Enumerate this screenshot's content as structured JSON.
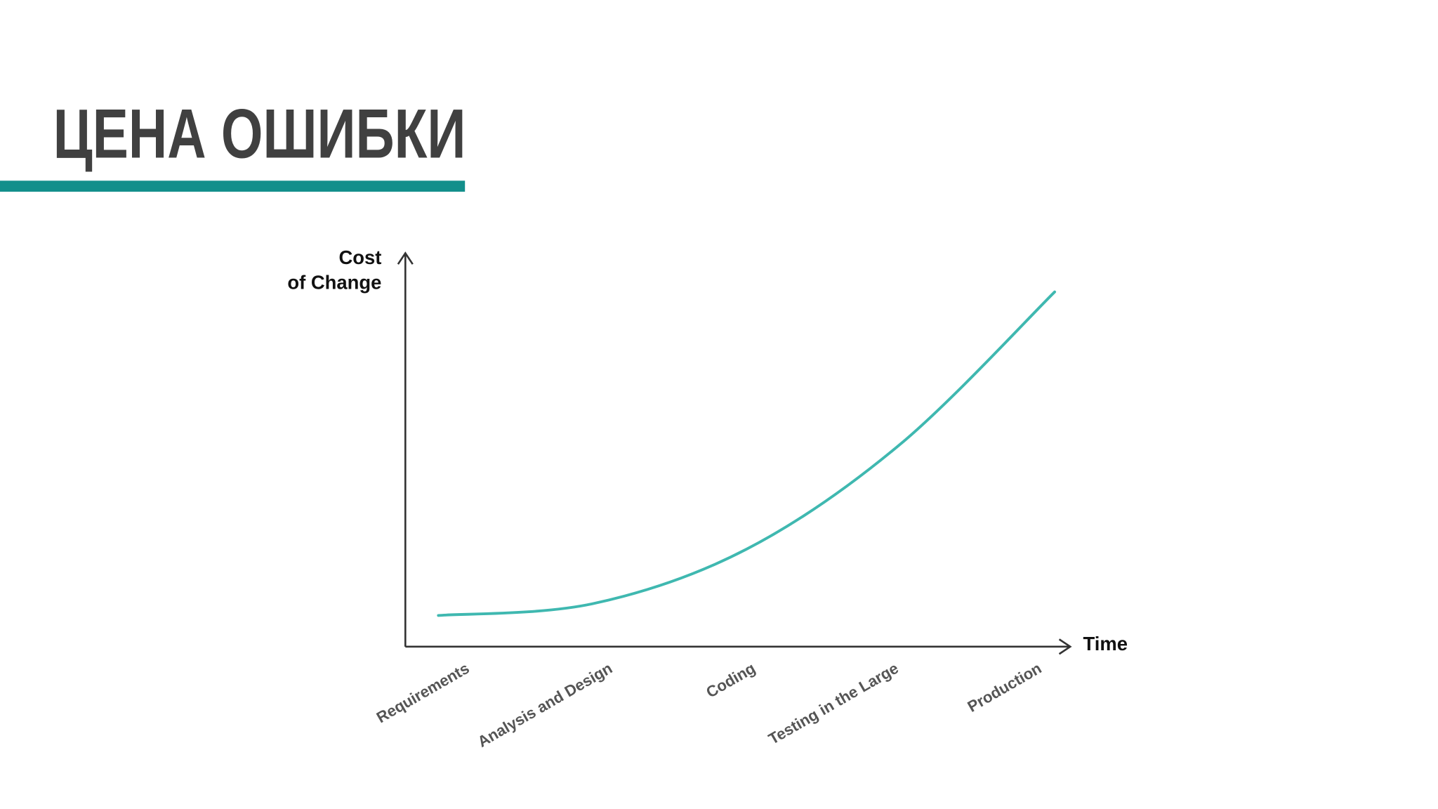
{
  "title": "ЦЕНА ОШИБКИ",
  "chart_data": {
    "type": "line",
    "y_label": [
      "Cost",
      "of Change"
    ],
    "x_label": "Time",
    "categories": [
      "Requirements",
      "Analysis and Design",
      "Coding",
      "Testing in the Large",
      "Production"
    ],
    "values": [
      8,
      11,
      25,
      52,
      91
    ],
    "color": "#3fb8b0",
    "ylim": [
      0,
      100
    ]
  }
}
